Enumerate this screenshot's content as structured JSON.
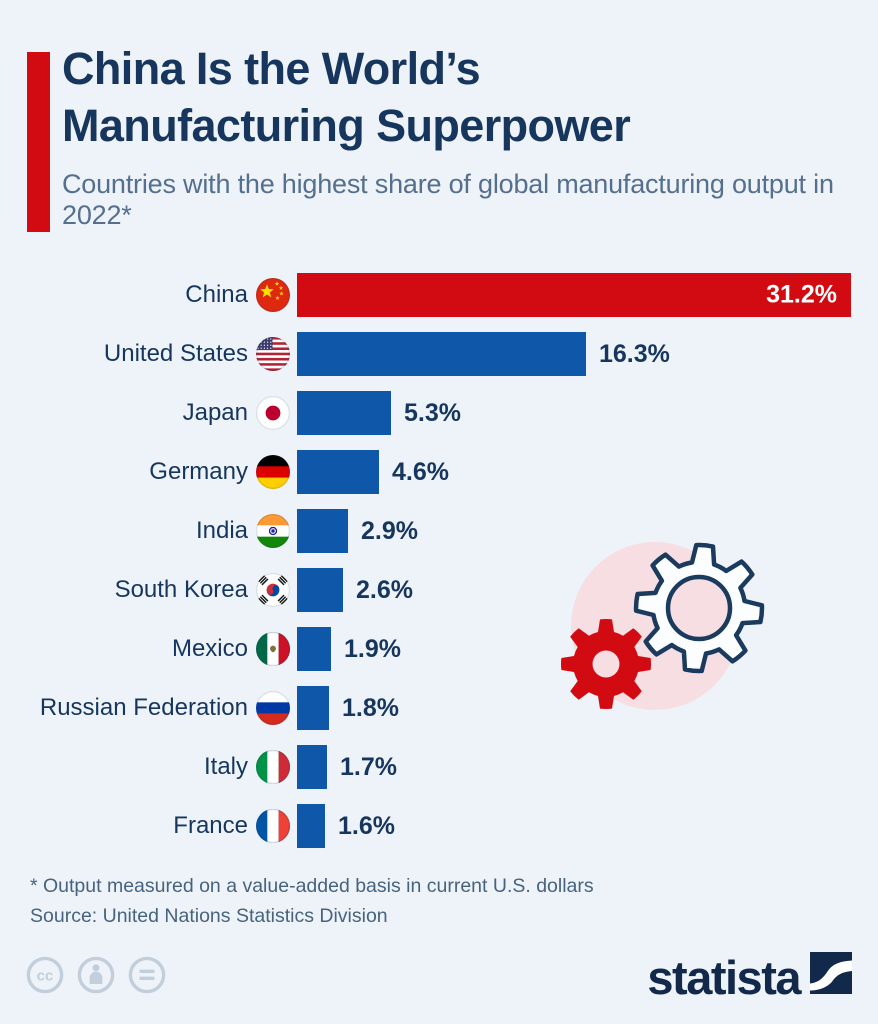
{
  "header": {
    "title_line1": "China Is the World’s",
    "title_line2": "Manufacturing Superpower",
    "subtitle": "Countries with the highest share of global manufacturing output in 2022*"
  },
  "chart_data": {
    "type": "bar",
    "orientation": "horizontal",
    "title": "China Is the World’s Manufacturing Superpower",
    "subtitle": "Countries with the highest share of global manufacturing output in 2022*",
    "unit": "% share of global manufacturing output",
    "xlim": [
      0,
      31.2
    ],
    "grid": false,
    "legend": false,
    "categories": [
      "China",
      "United States",
      "Japan",
      "Germany",
      "India",
      "South Korea",
      "Mexico",
      "Russian Federation",
      "Italy",
      "France"
    ],
    "values": [
      31.2,
      16.3,
      5.3,
      4.6,
      2.9,
      2.6,
      1.9,
      1.8,
      1.7,
      1.6
    ],
    "value_labels": [
      "31.2%",
      "16.3%",
      "5.3%",
      "4.6%",
      "2.9%",
      "2.6%",
      "1.9%",
      "1.8%",
      "1.7%",
      "1.6%"
    ],
    "flags": [
      "china",
      "usa",
      "japan",
      "germany",
      "india",
      "south-korea",
      "mexico",
      "russia",
      "italy",
      "france"
    ],
    "highlight_index": 0,
    "colors": {
      "highlight_bar": "#d20a11",
      "bar": "#0e57a9",
      "value_label": "#17365d",
      "value_label_inside": "#ffffff"
    }
  },
  "footnote": {
    "note": "* Output measured on a value-added basis in current U.S. dollars",
    "source": "Source: United Nations Statistics Division"
  },
  "footer": {
    "license_icons": [
      "cc",
      "attribution",
      "no-derivatives"
    ],
    "brand": "statista"
  },
  "theme": {
    "background": "#eef3f9",
    "accent_red": "#d20a11",
    "navy": "#17365d",
    "subtitle_color": "#54708e",
    "pink": "#f7dee2",
    "gear_outline": "#1a3a5e",
    "license_icon_color": "#c2cedb",
    "brand_navy": "#12294b"
  }
}
